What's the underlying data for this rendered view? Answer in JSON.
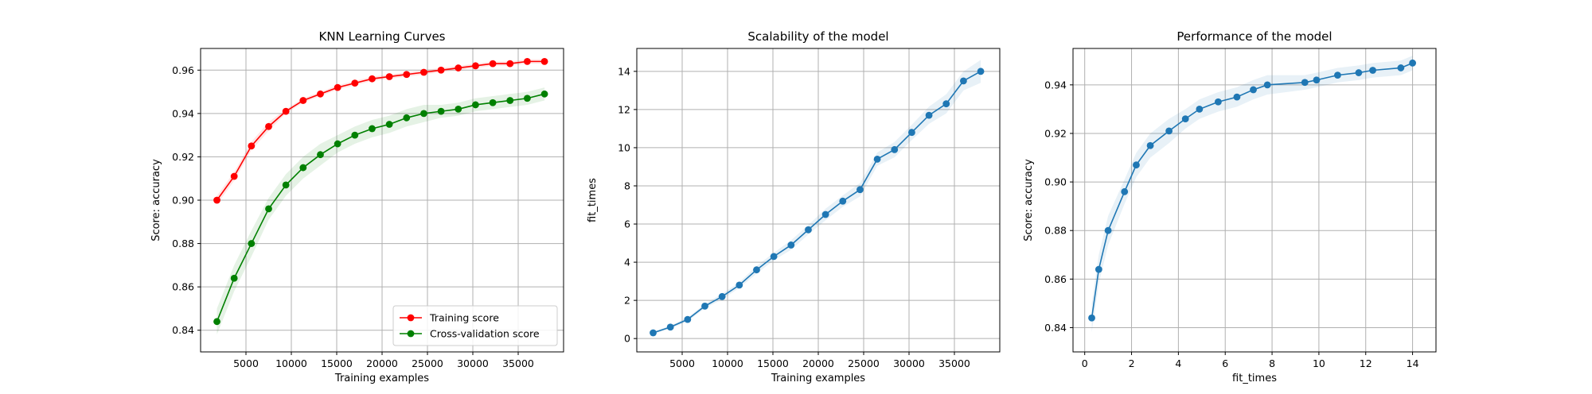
{
  "chart_data": [
    {
      "type": "line",
      "title": "KNN Learning Curves",
      "xlabel": "Training examples",
      "ylabel": "Score: accuracy",
      "xlim": [
        0,
        40000
      ],
      "ylim": [
        0.83,
        0.97
      ],
      "xticks": [
        5000,
        10000,
        15000,
        20000,
        25000,
        30000,
        35000
      ],
      "yticks": [
        0.84,
        0.86,
        0.88,
        0.9,
        0.92,
        0.94,
        0.96
      ],
      "ytick_labels": [
        "0.84",
        "0.86",
        "0.88",
        "0.90",
        "0.92",
        "0.94",
        "0.96"
      ],
      "grid": true,
      "legend": "lower-right",
      "x": [
        1800,
        3700,
        5600,
        7500,
        9400,
        11300,
        13200,
        15100,
        17000,
        18900,
        20800,
        22700,
        24600,
        26500,
        28400,
        30300,
        32200,
        34100,
        36000,
        37900
      ],
      "series": [
        {
          "name": "Training score",
          "color": "#ff0000",
          "values": [
            0.9,
            0.911,
            0.925,
            0.934,
            0.941,
            0.946,
            0.949,
            0.952,
            0.954,
            0.956,
            0.957,
            0.958,
            0.959,
            0.96,
            0.961,
            0.962,
            0.963,
            0.963,
            0.964,
            0.964
          ],
          "band": [
            0.002,
            0.002,
            0.002,
            0.002,
            0.001,
            0.001,
            0.001,
            0.001,
            0.001,
            0.001,
            0.001,
            0.001,
            0.001,
            0.001,
            0.001,
            0.001,
            0.001,
            0.001,
            0.001,
            0.001
          ]
        },
        {
          "name": "Cross-validation score",
          "color": "#008000",
          "values": [
            0.844,
            0.864,
            0.88,
            0.896,
            0.907,
            0.915,
            0.921,
            0.926,
            0.93,
            0.933,
            0.935,
            0.938,
            0.94,
            0.941,
            0.942,
            0.944,
            0.945,
            0.946,
            0.947,
            0.949
          ],
          "band": [
            0.006,
            0.006,
            0.006,
            0.005,
            0.005,
            0.005,
            0.005,
            0.004,
            0.004,
            0.004,
            0.004,
            0.004,
            0.004,
            0.003,
            0.003,
            0.003,
            0.003,
            0.003,
            0.003,
            0.003
          ]
        }
      ]
    },
    {
      "type": "line",
      "title": "Scalability of the model",
      "xlabel": "Training examples",
      "ylabel": "fit_times",
      "xlim": [
        0,
        40000
      ],
      "ylim": [
        -0.7,
        15.2
      ],
      "xticks": [
        5000,
        10000,
        15000,
        20000,
        25000,
        30000,
        35000
      ],
      "yticks": [
        0,
        2,
        4,
        6,
        8,
        10,
        12,
        14
      ],
      "grid": true,
      "x": [
        1800,
        3700,
        5600,
        7500,
        9400,
        11300,
        13200,
        15100,
        17000,
        18900,
        20800,
        22700,
        24600,
        26500,
        28400,
        30300,
        32200,
        34100,
        36000,
        37900
      ],
      "series": [
        {
          "color": "#1f77b4",
          "values": [
            0.3,
            0.6,
            1.0,
            1.7,
            2.2,
            2.8,
            3.6,
            4.3,
            4.9,
            5.7,
            6.5,
            7.2,
            7.8,
            9.4,
            9.9,
            10.8,
            11.7,
            12.3,
            13.5,
            14.0
          ],
          "band": [
            0.05,
            0.08,
            0.1,
            0.12,
            0.15,
            0.15,
            0.2,
            0.2,
            0.25,
            0.25,
            0.3,
            0.3,
            0.35,
            0.35,
            0.4,
            0.4,
            0.45,
            0.5,
            0.5,
            0.6
          ]
        }
      ]
    },
    {
      "type": "line",
      "title": "Performance of the model",
      "xlabel": "fit_times",
      "ylabel": "Score: accuracy",
      "xlim": [
        -0.5,
        15.0
      ],
      "ylim": [
        0.83,
        0.955
      ],
      "xticks": [
        0,
        2,
        4,
        6,
        8,
        10,
        12,
        14
      ],
      "yticks": [
        0.84,
        0.86,
        0.88,
        0.9,
        0.92,
        0.94
      ],
      "ytick_labels": [
        "0.84",
        "0.86",
        "0.88",
        "0.90",
        "0.92",
        "0.94"
      ],
      "grid": true,
      "x": [
        0.3,
        0.6,
        1.0,
        1.7,
        2.2,
        2.8,
        3.6,
        4.3,
        4.9,
        5.7,
        6.5,
        7.2,
        7.8,
        9.4,
        9.9,
        10.8,
        11.7,
        12.3,
        13.5,
        14.0
      ],
      "series": [
        {
          "color": "#1f77b4",
          "values": [
            0.844,
            0.864,
            0.88,
            0.896,
            0.907,
            0.915,
            0.921,
            0.926,
            0.93,
            0.933,
            0.935,
            0.938,
            0.94,
            0.941,
            0.942,
            0.944,
            0.945,
            0.946,
            0.947,
            0.949
          ],
          "band": [
            0.006,
            0.006,
            0.006,
            0.005,
            0.005,
            0.005,
            0.005,
            0.004,
            0.004,
            0.004,
            0.004,
            0.004,
            0.004,
            0.003,
            0.003,
            0.003,
            0.003,
            0.003,
            0.003,
            0.003
          ]
        }
      ]
    }
  ]
}
